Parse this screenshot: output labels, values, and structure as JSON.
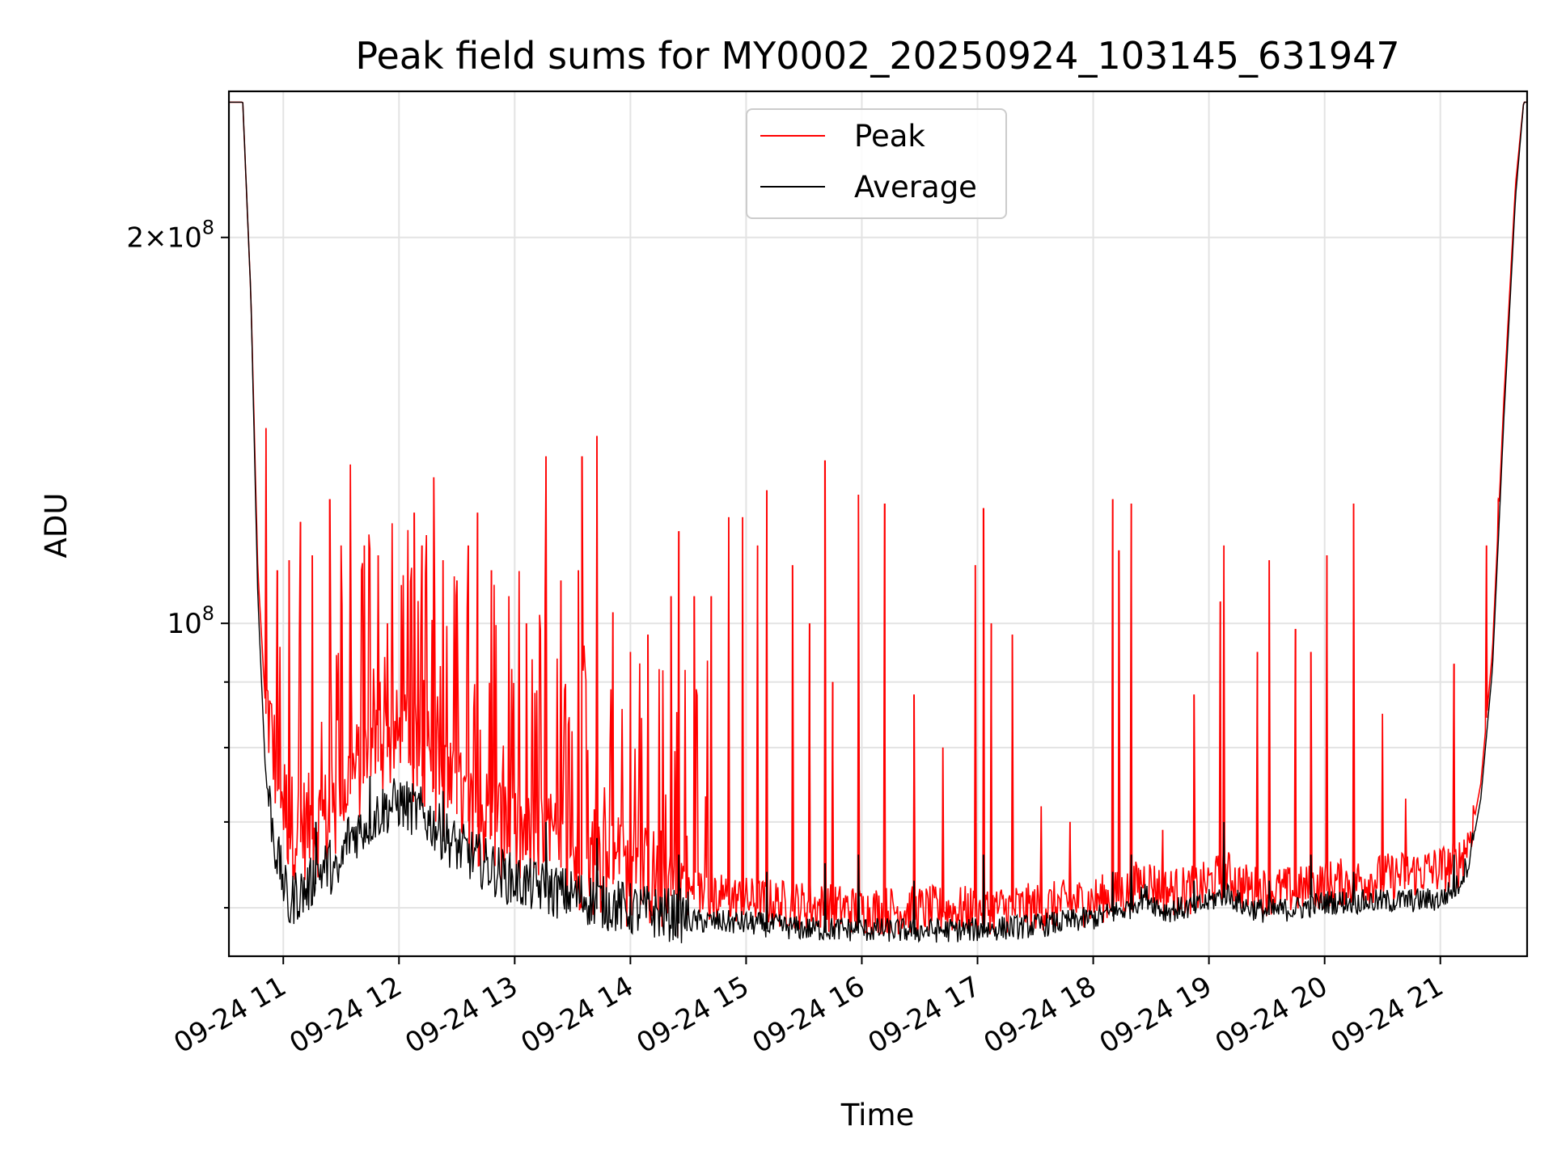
{
  "chart_data": {
    "type": "line",
    "title": "Peak field sums for MY0002_20250924_103145_631947",
    "xlabel": "Time",
    "ylabel": "ADU",
    "yscale": "log",
    "ylim": [
      55000000,
      260000000
    ],
    "xlim": [
      10.53,
      21.75
    ],
    "grid": true,
    "legend_location": "upper center",
    "x_ticks": [
      {
        "value": 11,
        "label": "09-24 11"
      },
      {
        "value": 12,
        "label": "09-24 12"
      },
      {
        "value": 13,
        "label": "09-24 13"
      },
      {
        "value": 14,
        "label": "09-24 14"
      },
      {
        "value": 15,
        "label": "09-24 15"
      },
      {
        "value": 16,
        "label": "09-24 16"
      },
      {
        "value": 17,
        "label": "09-24 17"
      },
      {
        "value": 18,
        "label": "09-24 18"
      },
      {
        "value": 19,
        "label": "09-24 19"
      },
      {
        "value": 20,
        "label": "09-24 20"
      },
      {
        "value": 21,
        "label": "09-24 21"
      }
    ],
    "y_major_ticks": [
      {
        "value": 100000000,
        "mantissa": "",
        "exponent": "8"
      },
      {
        "value": 200000000,
        "mantissa": "2",
        "exponent": "8"
      }
    ],
    "y_minor_ticks": [
      60000000,
      70000000,
      80000000,
      90000000
    ],
    "series": [
      {
        "name": "Peak",
        "color": "#ff0000",
        "baseline": {
          "x": [
            10.53,
            10.65,
            10.72,
            10.78,
            10.85,
            10.95,
            11.05,
            11.15,
            11.3,
            11.45,
            11.55,
            11.7,
            11.85,
            12.0,
            12.2,
            12.5,
            13.0,
            13.5,
            14.0,
            14.5,
            15.0,
            15.5,
            16.0,
            16.5,
            17.0,
            17.5,
            18.0,
            18.3,
            18.45,
            18.6,
            18.9,
            19.15,
            19.3,
            19.5,
            19.8,
            20.0,
            20.5,
            21.0,
            21.15,
            21.25,
            21.35,
            21.45,
            21.55,
            21.65,
            21.72,
            21.75
          ],
          "y": [
            255000000,
            255000000,
            180000000,
            110000000,
            85000000,
            74000000,
            68000000,
            67500000,
            68000000,
            69000000,
            73000000,
            76000000,
            78500000,
            79000000,
            76000000,
            71000000,
            66500000,
            64000000,
            62000000,
            61000000,
            60000000,
            59500000,
            59000000,
            59000000,
            59000000,
            59300000,
            60000000,
            61000000,
            62500000,
            61000000,
            61200000,
            63000000,
            61500000,
            61000000,
            61200000,
            61800000,
            62500000,
            63500000,
            64000000,
            67000000,
            75000000,
            95000000,
            150000000,
            220000000,
            255000000,
            255000000
          ]
        },
        "spikes": [
          {
            "x": 10.85,
            "y": 142000000
          },
          {
            "x": 10.95,
            "y": 110000000
          },
          {
            "x": 11.05,
            "y": 112000000
          },
          {
            "x": 11.15,
            "y": 120000000
          },
          {
            "x": 11.25,
            "y": 113000000
          },
          {
            "x": 11.4,
            "y": 125000000
          },
          {
            "x": 11.5,
            "y": 115000000
          },
          {
            "x": 11.58,
            "y": 133000000
          },
          {
            "x": 11.7,
            "y": 115000000
          },
          {
            "x": 11.82,
            "y": 113000000
          },
          {
            "x": 11.9,
            "y": 100000000
          },
          {
            "x": 12.1,
            "y": 108000000
          },
          {
            "x": 12.13,
            "y": 122000000
          },
          {
            "x": 12.2,
            "y": 115000000
          },
          {
            "x": 12.3,
            "y": 130000000
          },
          {
            "x": 12.38,
            "y": 112000000
          },
          {
            "x": 12.5,
            "y": 108000000
          },
          {
            "x": 12.6,
            "y": 115000000
          },
          {
            "x": 12.68,
            "y": 122000000
          },
          {
            "x": 12.8,
            "y": 110000000
          },
          {
            "x": 12.95,
            "y": 105000000
          },
          {
            "x": 13.1,
            "y": 100000000
          },
          {
            "x": 13.27,
            "y": 135000000
          },
          {
            "x": 13.4,
            "y": 108000000
          },
          {
            "x": 13.55,
            "y": 110000000
          },
          {
            "x": 13.58,
            "y": 135000000
          },
          {
            "x": 13.71,
            "y": 140000000
          },
          {
            "x": 13.85,
            "y": 102000000
          },
          {
            "x": 14.0,
            "y": 95000000
          },
          {
            "x": 14.15,
            "y": 98000000
          },
          {
            "x": 14.35,
            "y": 105000000
          },
          {
            "x": 14.42,
            "y": 118000000
          },
          {
            "x": 14.55,
            "y": 105000000
          },
          {
            "x": 14.7,
            "y": 105000000
          },
          {
            "x": 14.85,
            "y": 121000000
          },
          {
            "x": 14.97,
            "y": 121000000
          },
          {
            "x": 15.1,
            "y": 115000000
          },
          {
            "x": 15.18,
            "y": 127000000
          },
          {
            "x": 15.4,
            "y": 111000000
          },
          {
            "x": 15.55,
            "y": 100000000
          },
          {
            "x": 15.68,
            "y": 134000000
          },
          {
            "x": 15.75,
            "y": 90000000
          },
          {
            "x": 15.97,
            "y": 126000000
          },
          {
            "x": 16.2,
            "y": 124000000
          },
          {
            "x": 16.45,
            "y": 88000000
          },
          {
            "x": 16.7,
            "y": 80000000
          },
          {
            "x": 16.98,
            "y": 111000000
          },
          {
            "x": 17.05,
            "y": 123000000
          },
          {
            "x": 17.12,
            "y": 100000000
          },
          {
            "x": 17.3,
            "y": 98000000
          },
          {
            "x": 17.55,
            "y": 72000000
          },
          {
            "x": 17.8,
            "y": 70000000
          },
          {
            "x": 18.17,
            "y": 125000000
          },
          {
            "x": 18.22,
            "y": 114000000
          },
          {
            "x": 18.33,
            "y": 124000000
          },
          {
            "x": 18.6,
            "y": 69000000
          },
          {
            "x": 18.87,
            "y": 88000000
          },
          {
            "x": 19.1,
            "y": 104000000
          },
          {
            "x": 19.13,
            "y": 115000000
          },
          {
            "x": 19.42,
            "y": 95000000
          },
          {
            "x": 19.52,
            "y": 112000000
          },
          {
            "x": 19.75,
            "y": 99000000
          },
          {
            "x": 19.88,
            "y": 95000000
          },
          {
            "x": 20.02,
            "y": 113000000
          },
          {
            "x": 20.25,
            "y": 124000000
          },
          {
            "x": 20.5,
            "y": 85000000
          },
          {
            "x": 20.7,
            "y": 73000000
          },
          {
            "x": 21.12,
            "y": 93000000
          },
          {
            "x": 21.4,
            "y": 115000000
          },
          {
            "x": 21.5,
            "y": 125000000
          }
        ]
      },
      {
        "name": "Average",
        "color": "#000000",
        "baseline": {
          "x": [
            10.53,
            10.65,
            10.72,
            10.78,
            10.85,
            10.93,
            11.0,
            11.05,
            11.1,
            11.2,
            11.3,
            11.4,
            11.47,
            11.55,
            11.7,
            11.85,
            12.0,
            12.2,
            12.5,
            13.0,
            13.5,
            14.0,
            14.5,
            15.0,
            15.5,
            16.0,
            16.5,
            17.0,
            17.5,
            18.0,
            18.3,
            18.45,
            18.6,
            18.9,
            19.15,
            19.3,
            19.5,
            19.8,
            20.0,
            20.5,
            21.0,
            21.15,
            21.25,
            21.35,
            21.45,
            21.55,
            21.65,
            21.72,
            21.75
          ],
          "y": [
            255000000,
            255000000,
            180000000,
            105000000,
            75000000,
            66000000,
            62000000,
            59000000,
            60500000,
            61000000,
            63000000,
            64000000,
            62000000,
            67000000,
            68500000,
            70500000,
            71500000,
            70000000,
            66000000,
            62000000,
            60500000,
            59000000,
            58200000,
            58000000,
            57400000,
            57300000,
            57200000,
            57300000,
            57700000,
            58500000,
            59500000,
            61000000,
            59300000,
            59700000,
            61200000,
            59800000,
            59200000,
            59600000,
            60200000,
            60300000,
            60500000,
            62000000,
            65000000,
            73000000,
            92000000,
            145000000,
            215000000,
            255000000,
            255000000
          ]
        },
        "spikes": [
          {
            "x": 11.28,
            "y": 70000000
          },
          {
            "x": 11.75,
            "y": 76000000
          },
          {
            "x": 12.38,
            "y": 74000000
          },
          {
            "x": 13.27,
            "y": 70000000
          },
          {
            "x": 13.71,
            "y": 68000000
          },
          {
            "x": 14.42,
            "y": 66000000
          },
          {
            "x": 15.18,
            "y": 64000000
          },
          {
            "x": 15.68,
            "y": 65000000
          },
          {
            "x": 15.97,
            "y": 66000000
          },
          {
            "x": 16.45,
            "y": 63000000
          },
          {
            "x": 17.05,
            "y": 66000000
          },
          {
            "x": 18.17,
            "y": 64000000
          },
          {
            "x": 18.33,
            "y": 66000000
          },
          {
            "x": 18.87,
            "y": 63000000
          },
          {
            "x": 19.13,
            "y": 70000000
          },
          {
            "x": 19.52,
            "y": 63000000
          },
          {
            "x": 19.88,
            "y": 66000000
          },
          {
            "x": 20.25,
            "y": 64000000
          },
          {
            "x": 21.12,
            "y": 66000000
          }
        ]
      }
    ]
  }
}
